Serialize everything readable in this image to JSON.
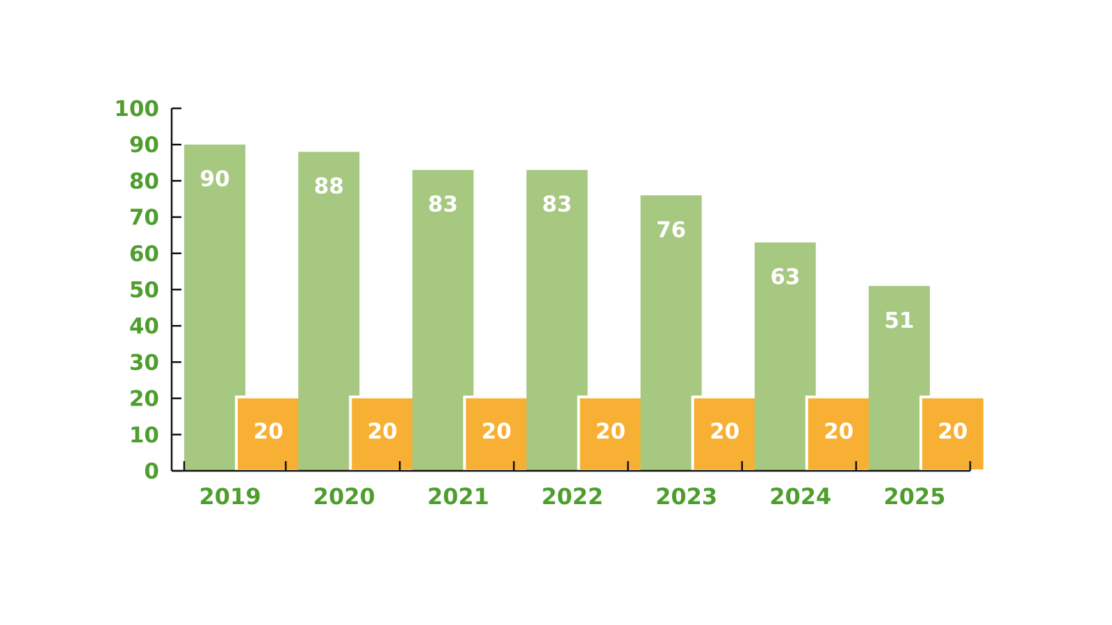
{
  "chart_data": {
    "type": "bar",
    "categories": [
      "2019",
      "2020",
      "2021",
      "2022",
      "2023",
      "2024",
      "2025"
    ],
    "series": [
      {
        "values": [
          90,
          88,
          83,
          83,
          76,
          63,
          51
        ],
        "color": "#a6c880"
      },
      {
        "values": [
          20,
          20,
          20,
          20,
          20,
          20,
          20
        ],
        "color": "#f7b033"
      }
    ],
    "ylim": [
      0,
      100
    ],
    "yticks": [
      "0",
      "10",
      "20",
      "30",
      "40",
      "50",
      "60",
      "70",
      "80",
      "90",
      "100"
    ],
    "axis_label_color": "#4e9e2e",
    "axis_line_color": "#111111",
    "grid": false,
    "legend": "none"
  }
}
